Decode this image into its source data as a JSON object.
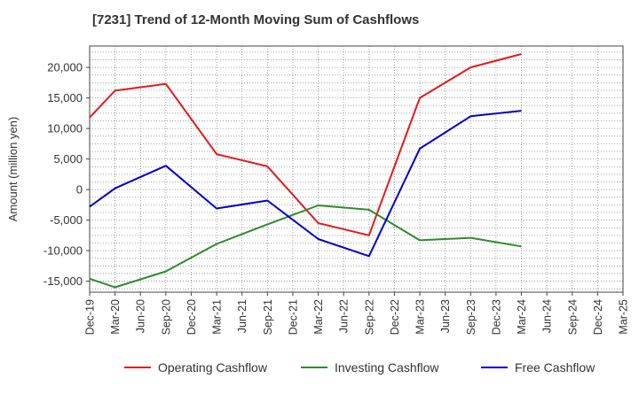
{
  "chart_data": {
    "type": "line",
    "title": "[7231]  Trend of 12-Month Moving Sum of Cashflows",
    "xlabel": "",
    "ylabel": "Amount (million yen)",
    "categories": [
      "Dec-19",
      "Mar-20",
      "Jun-20",
      "Sep-20",
      "Dec-20",
      "Mar-21",
      "Jun-21",
      "Sep-21",
      "Dec-21",
      "Mar-22",
      "Jun-22",
      "Sep-22",
      "Dec-22",
      "Mar-23",
      "Jun-23",
      "Sep-23",
      "Dec-23",
      "Mar-24",
      "Jun-24",
      "Sep-24",
      "Dec-24",
      "Mar-25"
    ],
    "yticks": [
      -15000,
      -10000,
      -5000,
      0,
      5000,
      10000,
      15000,
      20000
    ],
    "ytick_labels": [
      "-15,000",
      "-10,000",
      "-5,000",
      "0",
      "5,000",
      "10,000",
      "15,000",
      "20,000"
    ],
    "ylim": [
      -16800,
      23500
    ],
    "grid": true,
    "legend_position": "bottom",
    "series": [
      {
        "name": "Operating Cashflow",
        "color": "#e31a1c",
        "values": [
          11800,
          16200,
          null,
          17300,
          null,
          5800,
          null,
          3800,
          null,
          -5500,
          null,
          -7500,
          null,
          15000,
          null,
          20000,
          null,
          22200,
          null,
          null,
          null,
          null
        ]
      },
      {
        "name": "Investing Cashflow",
        "color": "#2e8b2e",
        "values": [
          -14600,
          -16000,
          null,
          -13400,
          null,
          -8900,
          null,
          -5700,
          null,
          -2600,
          null,
          -3300,
          null,
          -8300,
          null,
          -7900,
          null,
          -9300,
          null,
          null,
          null,
          null
        ]
      },
      {
        "name": "Free Cashflow",
        "color": "#0000cc",
        "values": [
          -2800,
          200,
          null,
          3900,
          null,
          -3100,
          null,
          -1800,
          null,
          -8100,
          null,
          -10900,
          null,
          6700,
          null,
          12000,
          null,
          12900,
          null,
          null,
          null,
          null
        ]
      }
    ]
  }
}
